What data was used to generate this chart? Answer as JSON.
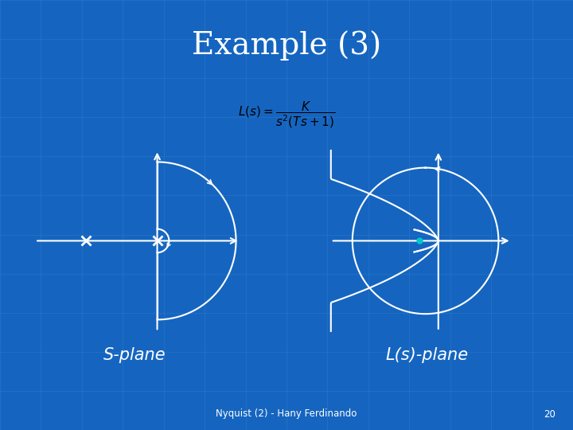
{
  "bg_color": "#1565c0",
  "title": "Example (3)",
  "title_color": "#ffffff",
  "title_fontsize": 28,
  "curve_color": "#ffffff",
  "label_color": "#ffffff",
  "label_s": "S-plane",
  "label_ls": "L(s)-plane",
  "footer_text": "Nyquist (2) - Hany Ferdinando",
  "footer_page": "20",
  "grid_color": "#4a90d9",
  "dot_color": "#00c8c8",
  "formula_bg": "#c8dff5"
}
